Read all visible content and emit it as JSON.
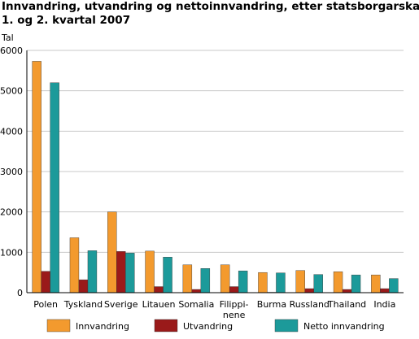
{
  "title_line1": "Innvandring, utvandring og nettoinnvandring, etter statsborgarskap.",
  "title_line2": "1. og 2. kvartal 2007",
  "colors": {
    "Innvandring": "#f39a2e",
    "Utvandring": "#9a1a1a",
    "Netto innvandring": "#1c9a9a"
  },
  "chart_data": {
    "type": "bar",
    "ylabel": "Tal",
    "ylim": [
      0,
      6000
    ],
    "yticks": [
      "0",
      "1000",
      "2000",
      "3000",
      "4000",
      "5000",
      "6000"
    ],
    "grid": "horizontal",
    "legend_position": "bottom",
    "categories": [
      [
        "Polen"
      ],
      [
        "Tyskland"
      ],
      [
        "Sverige"
      ],
      [
        "Litauen"
      ],
      [
        "Somalia"
      ],
      [
        "Filippi-",
        "nene"
      ],
      [
        "Burma"
      ],
      [
        "Russland"
      ],
      [
        "Thailand"
      ],
      [
        "India"
      ]
    ],
    "series": [
      {
        "name": "Innvandring",
        "values": [
          5730,
          1360,
          2000,
          1030,
          690,
          690,
          500,
          550,
          520,
          440
        ]
      },
      {
        "name": "Utvandring",
        "values": [
          530,
          320,
          1020,
          150,
          80,
          150,
          10,
          100,
          80,
          100
        ]
      },
      {
        "name": "Netto innvandring",
        "values": [
          5200,
          1040,
          980,
          880,
          600,
          540,
          490,
          450,
          440,
          350
        ]
      }
    ]
  }
}
